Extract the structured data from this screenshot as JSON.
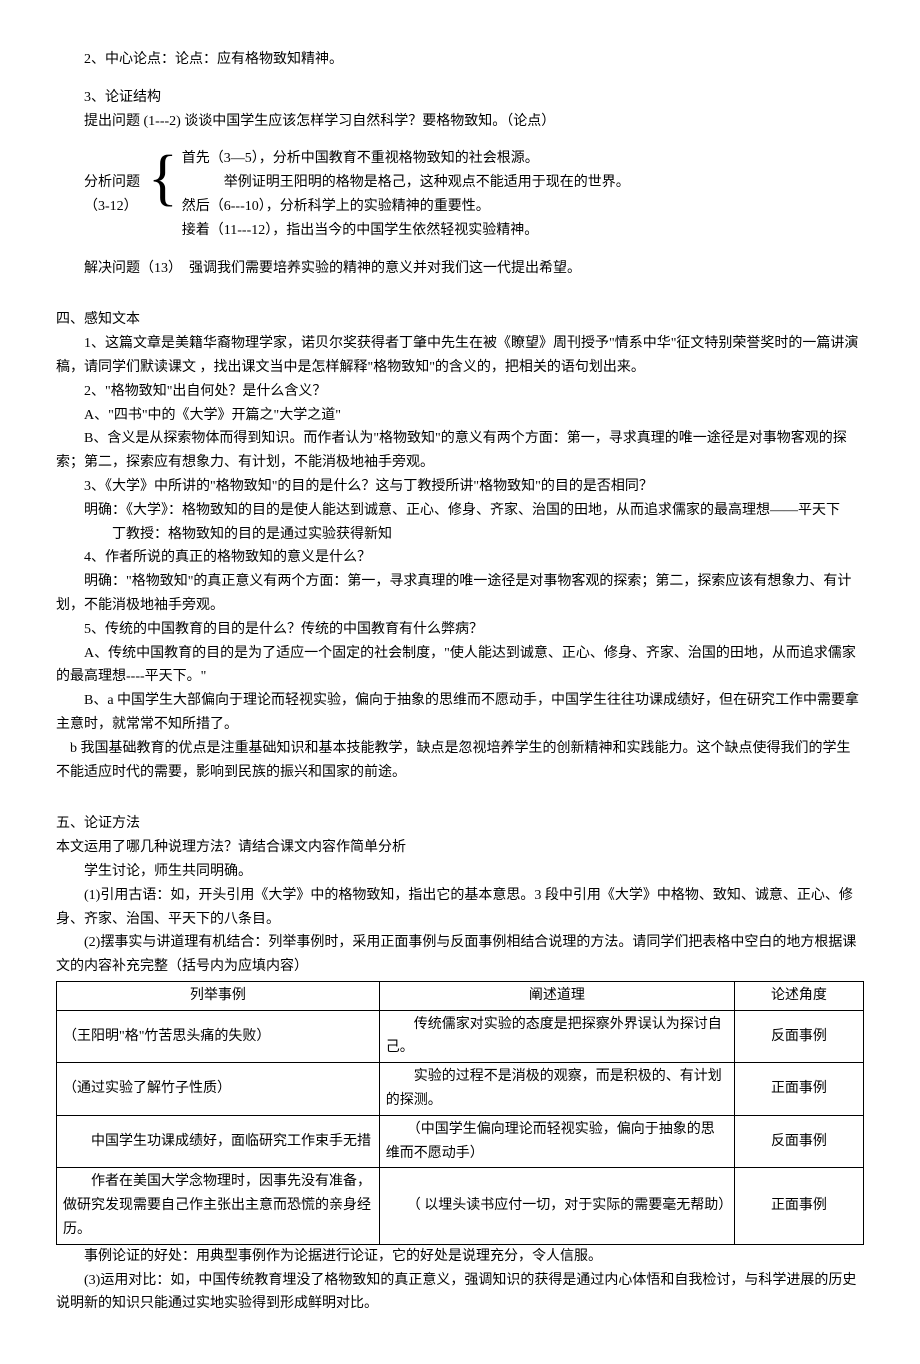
{
  "top": {
    "p1": "2、中心论点：论点：应有格物致知精神。",
    "p2": "3、论证结构",
    "p3": "提出问题 (1---2) 谈谈中国学生应该怎样学习自然科学？要格物致知。（论点）"
  },
  "brace": {
    "left_line1": "分析问题",
    "left_line2": "（3-12）",
    "r1": "首先（3—5），分析中国教育不重视格物致知的社会根源。",
    "r2": "　　　举例证明王阳明的格物是格己，这种观点不能适用于现在的世界。",
    "r3": "然后（6---10），分析科学上的实验精神的重要性。",
    "r4": "接着（11---12），指出当今的中国学生依然轻视实验精神。"
  },
  "after_brace": "解决问题（13）　强调我们需要培养实验的精神的意义并对我们这一代提出希望。",
  "s4": {
    "heading": "四、感知文本",
    "p1": "1、这篇文章是美籍华裔物理学家，诺贝尔奖获得者丁肇中先生在被《瞭望》周刊授予\"情系中华\"征文特别荣誉奖时的一篇讲演稿，请同学们默读课文 ，找出课文当中是怎样解释\"格物致知\"的含义的，把相关的语句划出来。",
    "p2": "2、\"格物致知\"出自何处？是什么含义？",
    "p3": "A、\"四书\"中的《大学》开篇之\"大学之道\"",
    "p4": "B、含义是从探索物体而得到知识。而作者认为\"格物致知\"的意义有两个方面：第一，寻求真理的唯一途径是对事物客观的探索；第二，探索应有想象力、有计划，不能消极地袖手旁观。",
    "p5": "3、《大学》中所讲的\"格物致知\"的目的是什么？这与丁教授所讲\"格物致知\"的目的是否相同？",
    "p6": "明确：《大学》：格物致知的目的是使人能达到诚意、正心、修身、齐家、治国的田地，从而追求儒家的最高理想——平天下",
    "p7": "丁教授：格物致知的目的是通过实验获得新知",
    "p8": "4、作者所说的真正的格物致知的意义是什么？",
    "p9": "明确：\"格物致知\"的真正意义有两个方面：第一，寻求真理的唯一途径是对事物客观的探索；第二，探索应该有想象力、有计划，不能消极地袖手旁观。",
    "p10": "5、传统的中国教育的目的是什么？传统的中国教育有什么弊病？",
    "p11": "A、传统中国教育的目的是为了适应一个固定的社会制度，\"使人能达到诚意、正心、修身、齐家、治国的田地，从而追求儒家的最高理想----平天下。\"",
    "p12": "B、a 中国学生大部偏向于理论而轻视实验，偏向于抽象的思维而不愿动手，中国学生往往功课成绩好，但在研究工作中需要拿主意时，就常常不知所措了。",
    "p13": "b 我国基础教育的优点是注重基础知识和基本技能教学，缺点是忽视培养学生的创新精神和实践能力。这个缺点使得我们的学生不能适应时代的需要，影响到民族的振兴和国家的前途。"
  },
  "s5": {
    "heading": "五、论证方法",
    "p1": "本文运用了哪几种说理方法？请结合课文内容作简单分析",
    "p2": "学生讨论，师生共同明确。",
    "p3": "(1)引用古语：如，开头引用《大学》中的格物致知，指出它的基本意思。3 段中引用《大学》中格物、致知、诚意、正心、修身、齐家、治国、平天下的八条目。",
    "p4": "(2)摆事实与讲道理有机结合：列举事例时，采用正面事例与反面事例相结合说理的方法。请同学们把表格中空白的地方根据课文的内容补充完整（括号内为应填内容）"
  },
  "table": {
    "headers": [
      "列举事例",
      "阐述道理",
      "论述角度"
    ],
    "rows": [
      {
        "c1": "（王阳明\"格\"竹苦思头痛的失败）",
        "c2": "　　传统儒家对实验的态度是把探察外界误认为探讨自己。",
        "c3": "反面事例"
      },
      {
        "c1": "（通过实验了解竹子性质）",
        "c2": "　　实验的过程不是消极的观察，而是积极的、有计划的探测。",
        "c3": "正面事例"
      },
      {
        "c1": "　　中国学生功课成绩好，面临研究工作束手无措",
        "c2": "　　（中国学生偏向理论而轻视实验，偏向于抽象的思维而不愿动手）",
        "c3": "反面事例"
      },
      {
        "c1": "　　作者在美国大学念物理时，因事先没有准备，做研究发现需要自己作主张出主意而恐慌的亲身经历。",
        "c2": "　　（ 以埋头读书应付一切，对于实际的需要毫无帮助）",
        "c3": "正面事例"
      }
    ]
  },
  "tail": {
    "p1": "事例论证的好处：用典型事例作为论据进行论证，它的好处是说理充分，令人信服。",
    "p2": "(3)运用对比：如，中国传统教育埋没了格物致知的真正意义，强调知识的获得是通过内心体悟和自我检讨，与科学进展的历史说明新的知识只能通过实地实验得到形成鲜明对比。"
  }
}
